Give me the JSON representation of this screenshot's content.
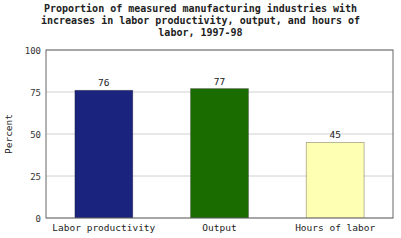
{
  "chart_data": {
    "type": "bar",
    "title": "Proportion of measured manufacturing industries with\nincreases in labor productivity, output, and hours of\nlabor, 1997-98",
    "categories": [
      "Labor productivity",
      "Output",
      "Hours of labor"
    ],
    "values": [
      76,
      77,
      45
    ],
    "colors": [
      "#1a237e",
      "#1a6b00",
      "#ffffb3"
    ],
    "ylabel": "Percent",
    "ylim": [
      0,
      100
    ],
    "yticks": [
      0,
      25,
      50,
      75,
      100
    ],
    "grid": true,
    "data_labels": true
  }
}
